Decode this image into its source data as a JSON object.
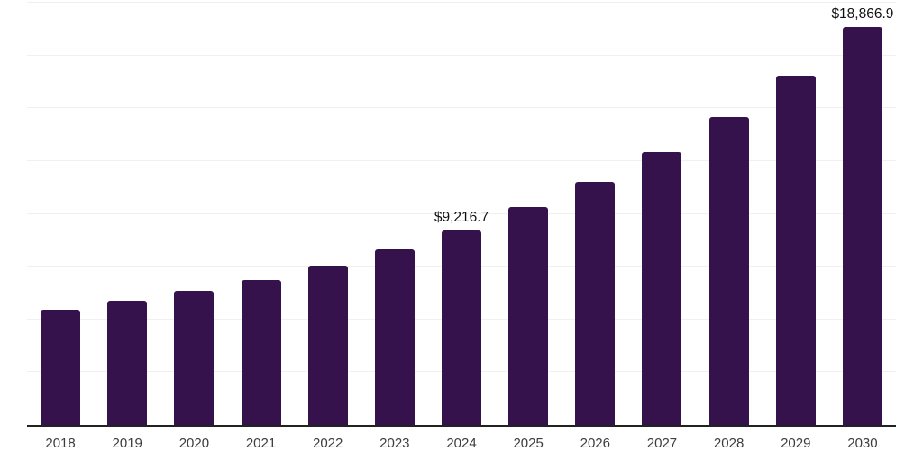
{
  "chart_data": {
    "type": "bar",
    "title": "",
    "xlabel": "",
    "ylabel": "",
    "categories": [
      "2018",
      "2019",
      "2020",
      "2021",
      "2022",
      "2023",
      "2024",
      "2025",
      "2026",
      "2027",
      "2028",
      "2029",
      "2030"
    ],
    "values": [
      5480,
      5900,
      6360,
      6870,
      7550,
      8310,
      9216.7,
      10300,
      11500,
      12930,
      14580,
      16530,
      18866.9
    ],
    "data_labels": [
      "",
      "",
      "",
      "",
      "",
      "",
      "$9,216.7",
      "",
      "",
      "",
      "",
      "",
      "$18,866.9"
    ],
    "ylim": [
      0,
      20000
    ],
    "grid_interval": 2500,
    "grid": true,
    "legend": false,
    "colors": {
      "bar": "#36124d",
      "axis": "#222222",
      "gridline": "#f0f0f0",
      "tick_label": "#3c3c3c",
      "value_label": "#111111",
      "background": "#ffffff"
    }
  }
}
